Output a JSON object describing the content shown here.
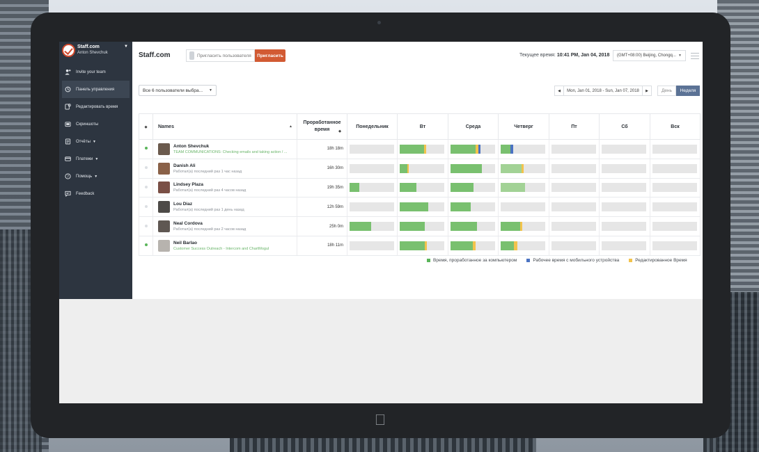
{
  "sidebar": {
    "brand": "Staff.com",
    "user": "Anton Shevchuk",
    "items": [
      {
        "label": "Invite your team",
        "icon": "person-add-icon",
        "caret": false
      },
      {
        "label": "Панель управления",
        "icon": "history-icon",
        "caret": false
      },
      {
        "label": "Редактировать время",
        "icon": "edit-time-icon",
        "caret": false
      },
      {
        "label": "Скриншоты",
        "icon": "screenshot-icon",
        "caret": false
      },
      {
        "label": "Отчёты",
        "icon": "report-icon",
        "caret": true
      },
      {
        "label": "Платежи",
        "icon": "card-icon",
        "caret": true
      },
      {
        "label": "Помощь",
        "icon": "help-icon",
        "caret": true
      },
      {
        "label": "Feedback",
        "icon": "feedback-icon",
        "caret": false
      }
    ]
  },
  "header": {
    "title": "Staff.com",
    "invite_placeholder": "Пригласить пользователя",
    "invite_button": "Пригласить",
    "time_label": "Текущее время:",
    "time_value": "10:41 PM, Jan 04, 2018",
    "timezone": "(GMT+08:00) Beijing, Chongq..."
  },
  "filters": {
    "users": "Все 6 пользователи выбра...",
    "date_range": "Mon, Jan 01, 2018 - Sun, Jan 07, 2018",
    "view_day": "День",
    "view_week": "Неделя",
    "active_view": "week"
  },
  "table": {
    "columns": {
      "names": "Names",
      "worked": "Проработанное время",
      "days": [
        "Понедельник",
        "Вт",
        "Среда",
        "Четверг",
        "Пт",
        "Сб",
        "Вск"
      ]
    },
    "rows": [
      {
        "name": "Anton Shevchuk",
        "status": "TEAM COMMUNICATIONS: Checking emails and taking action / ...",
        "status_active": true,
        "online": true,
        "worked": "18h 18m",
        "avatar": "#6b5a4d",
        "days": [
          [],
          [
            [
              0,
              0.55,
              "g"
            ],
            [
              0.55,
              0.05,
              "y"
            ]
          ],
          [
            [
              0,
              0.56,
              "g"
            ],
            [
              0.56,
              0.06,
              "y"
            ],
            [
              0.62,
              0.05,
              "b"
            ]
          ],
          [
            [
              0,
              0.22,
              "g"
            ],
            [
              0.22,
              0.06,
              "b"
            ]
          ],
          [],
          [],
          []
        ]
      },
      {
        "name": "Danish Ali",
        "status": "Работал(а) последний раз 1 час назад",
        "status_active": false,
        "online": false,
        "worked": "16h 30m",
        "avatar": "#8a6148",
        "days": [
          [],
          [
            [
              0,
              0.17,
              "g"
            ],
            [
              0.17,
              0.04,
              "y"
            ]
          ],
          [
            [
              0,
              0.7,
              "g"
            ]
          ],
          [
            [
              0,
              0.47,
              "lg"
            ],
            [
              0.47,
              0.04,
              "y"
            ]
          ],
          [],
          [],
          []
        ]
      },
      {
        "name": "Lindsey Plaza",
        "status": "Работал(а) последний раз 4 часов назад",
        "status_active": false,
        "online": false,
        "worked": "19h 35m",
        "avatar": "#7a4f45",
        "days": [
          [
            [
              0,
              0.22,
              "g"
            ]
          ],
          [
            [
              0,
              0.38,
              "g"
            ]
          ],
          [
            [
              0,
              0.52,
              "g"
            ]
          ],
          [
            [
              0,
              0.55,
              "lg"
            ]
          ],
          [],
          [],
          []
        ]
      },
      {
        "name": "Lou Diaz",
        "status": "Работал(а) последний раз 1 день назад",
        "status_active": false,
        "online": false,
        "worked": "12h 59m",
        "avatar": "#4d4a47",
        "days": [
          [],
          [
            [
              0,
              0.64,
              "g"
            ]
          ],
          [
            [
              0,
              0.46,
              "g"
            ]
          ],
          [],
          [],
          [],
          []
        ]
      },
      {
        "name": "Neal Cordova",
        "status": "Работал(а) последний раз 2 часов назад",
        "status_active": false,
        "online": false,
        "worked": "25h 0m",
        "avatar": "#5f5752",
        "days": [
          [
            [
              0,
              0.48,
              "g"
            ]
          ],
          [
            [
              0,
              0.57,
              "g"
            ]
          ],
          [
            [
              0,
              0.6,
              "g"
            ]
          ],
          [
            [
              0,
              0.44,
              "g"
            ],
            [
              0.44,
              0.04,
              "y"
            ]
          ],
          [],
          [],
          []
        ]
      },
      {
        "name": "Neil Barlao",
        "status": "Customer Success Outreach - Intercom and ChartMogul",
        "status_active": true,
        "online": true,
        "worked": "18h 11m",
        "avatar": "#b7b3ae",
        "days": [
          [],
          [
            [
              0,
              0.56,
              "g"
            ],
            [
              0.56,
              0.05,
              "y"
            ]
          ],
          [
            [
              0,
              0.5,
              "g"
            ],
            [
              0.5,
              0.06,
              "y"
            ]
          ],
          [
            [
              0,
              0.3,
              "g"
            ],
            [
              0.3,
              0.07,
              "y"
            ]
          ],
          [],
          [],
          []
        ]
      }
    ]
  },
  "legend": [
    {
      "label": "Время, проработанное за компьютером",
      "color": "#5ab55a"
    },
    {
      "label": "Рабочее время с мобильного устройства",
      "color": "#4b73c2"
    },
    {
      "label": "Редактированное Время",
      "color": "#f2c34c"
    }
  ]
}
